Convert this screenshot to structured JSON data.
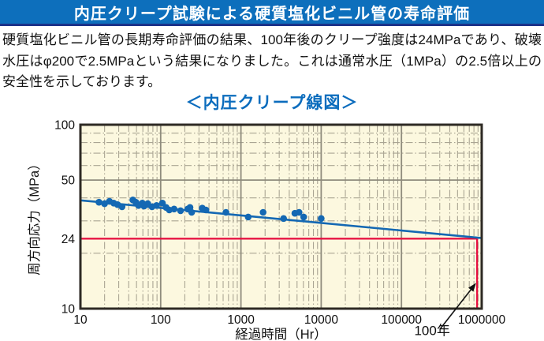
{
  "header": {
    "title": "内圧クリープ試験による硬質塩化ビニル管の寿命評価"
  },
  "description": {
    "text": "硬質塩化ビニル管の長期寿命評価の結果、100年後のクリープ強度は24MPaであり、破壊水圧はφ200で2.5MPaという結果になりました。これは通常水圧（1MPa）の2.5倍以上の安全性を示しております。"
  },
  "chart_title": "＜内圧クリープ線図＞",
  "chart_data": {
    "type": "scatter",
    "title": "内圧クリープ線図",
    "xlabel": "経過時間（Hr）",
    "ylabel": "周方向応力（MPa）",
    "x_scale": "log",
    "y_scale": "log",
    "xlim": [
      10,
      1000000
    ],
    "ylim": [
      10,
      100
    ],
    "x_ticks": [
      10,
      100,
      1000,
      10000,
      100000,
      1000000
    ],
    "x_tick_labels": [
      "10",
      "100",
      "1000",
      "10000",
      "100000",
      "1000000"
    ],
    "y_ticks": [
      100,
      50,
      24,
      10
    ],
    "y_tick_labels": [
      "100",
      "50",
      "24",
      "10"
    ],
    "grid": {
      "x_major": [
        100,
        1000,
        10000,
        100000
      ],
      "y_major": [
        50
      ],
      "minors_on": true
    },
    "points_hr_mpa": [
      [
        17,
        37.9
      ],
      [
        20,
        37.2
      ],
      [
        23,
        38.3
      ],
      [
        26,
        37.5
      ],
      [
        29,
        36.8
      ],
      [
        33,
        35.8
      ],
      [
        45,
        39.0
      ],
      [
        49,
        37.9
      ],
      [
        53,
        36.4
      ],
      [
        59,
        37.5
      ],
      [
        62,
        36.1
      ],
      [
        69,
        37.2
      ],
      [
        78,
        35.8
      ],
      [
        89,
        36.4
      ],
      [
        105,
        37.5
      ],
      [
        117,
        35.5
      ],
      [
        128,
        34.4
      ],
      [
        147,
        34.8
      ],
      [
        177,
        34.1
      ],
      [
        217,
        34.8
      ],
      [
        232,
        35.5
      ],
      [
        243,
        33.4
      ],
      [
        330,
        35.2
      ],
      [
        366,
        34.4
      ],
      [
        650,
        33.4
      ],
      [
        1230,
        31.5
      ],
      [
        1890,
        33.4
      ],
      [
        3400,
        30.9
      ],
      [
        4700,
        33.0
      ],
      [
        5300,
        33.4
      ],
      [
        6050,
        31.5
      ],
      [
        10000,
        30.9
      ]
    ],
    "trend_line": {
      "x": [
        10,
        1000000
      ],
      "y": [
        38.8,
        24.2
      ]
    },
    "reference": {
      "time_hr": 876000,
      "stress_mpa": 24,
      "label": "100年"
    },
    "legend": "none"
  },
  "colors": {
    "accent_blue": "#1468b3",
    "reference_red": "#e60a3c",
    "plot_bg": "#fcf8df",
    "grid_minor": "#aaa593",
    "grid_major": "#8f8c7d",
    "plot_border": "#2e2a24",
    "header_bg": "#0d6fbc",
    "header_strip": "#1b3289",
    "chart_title_blue": "#0b6cbd",
    "text": "#111111"
  }
}
